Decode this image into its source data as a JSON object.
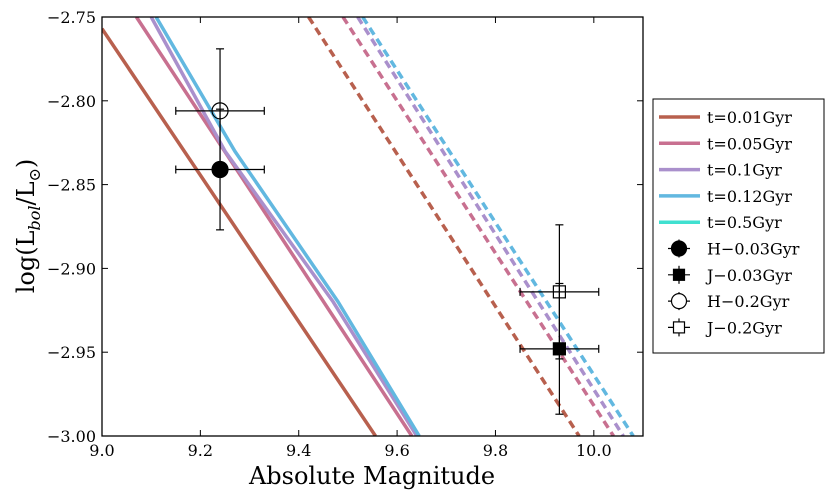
{
  "chart_data": {
    "type": "line",
    "xlabel": "Absolute Magnitude",
    "ylabel": "log(L_bol/L_⊙)",
    "ylabel_main": "log(L",
    "ylabel_sub1": "bol",
    "ylabel_mid": "/L",
    "ylabel_sub2": "⊙",
    "ylabel_end": ")",
    "xlim": [
      9.0,
      10.1
    ],
    "ylim": [
      -3.0,
      -2.75
    ],
    "xticks": [
      9.0,
      9.2,
      9.4,
      9.6,
      9.8,
      10.0
    ],
    "xtick_labels": [
      "9.0",
      "9.2",
      "9.4",
      "9.6",
      "9.8",
      "10.0"
    ],
    "yticks": [
      -3.0,
      -2.95,
      -2.9,
      -2.85,
      -2.8,
      -2.75
    ],
    "ytick_labels": [
      "−3.00",
      "−2.95",
      "−2.90",
      "−2.85",
      "−2.80",
      "−2.75"
    ],
    "grid": false,
    "legend_position": "right-outside",
    "series": [
      {
        "name": "t=0.01Gyr",
        "color": "#b8604e",
        "style": "solid",
        "points": [
          [
            9.0,
            -2.757
          ],
          [
            9.556,
            -3.0
          ]
        ]
      },
      {
        "name": "t=0.05Gyr",
        "color": "#c87090",
        "style": "solid",
        "points": [
          [
            9.07,
            -2.75
          ],
          [
            9.63,
            -3.0
          ]
        ]
      },
      {
        "name": "t=0.1Gyr",
        "color": "#aa90cc",
        "style": "solid",
        "points": [
          [
            9.1,
            -2.75
          ],
          [
            9.25,
            -2.83
          ],
          [
            9.47,
            -2.92
          ],
          [
            9.64,
            -3.0
          ]
        ]
      },
      {
        "name": "t=0.12Gyr",
        "color": "#62b8e0",
        "style": "solid",
        "points": [
          [
            9.11,
            -2.75
          ],
          [
            9.27,
            -2.83
          ],
          [
            9.48,
            -2.92
          ],
          [
            9.645,
            -3.0
          ]
        ]
      },
      {
        "name": "t=0.5Gyr",
        "color": "#40e0d0",
        "style": "none",
        "points": []
      },
      {
        "name": "t=0.01Gyr (dashed)",
        "color": "#b8604e",
        "style": "dashed",
        "points": [
          [
            9.42,
            -2.75
          ],
          [
            9.97,
            -3.0
          ]
        ]
      },
      {
        "name": "t=0.05Gyr (dashed)",
        "color": "#c87090",
        "style": "dashed",
        "points": [
          [
            9.49,
            -2.75
          ],
          [
            10.04,
            -3.0
          ]
        ]
      },
      {
        "name": "t=0.1Gyr (dashed)",
        "color": "#aa90cc",
        "style": "dashed",
        "points": [
          [
            9.52,
            -2.75
          ],
          [
            10.06,
            -3.0
          ]
        ]
      },
      {
        "name": "t=0.12Gyr (dashed)",
        "color": "#62b8e0",
        "style": "dashed",
        "points": [
          [
            9.53,
            -2.75
          ],
          [
            10.08,
            -3.0
          ]
        ]
      }
    ],
    "error_points": [
      {
        "name": "H−0.03Gyr",
        "marker": "circle",
        "filled": true,
        "x": 9.24,
        "y": -2.841,
        "xerr": 0.09,
        "yerr": 0.036
      },
      {
        "name": "J−0.03Gyr",
        "marker": "square",
        "filled": true,
        "x": 9.93,
        "y": -2.948,
        "xerr": 0.08,
        "yerr": 0.039
      },
      {
        "name": "H−0.2Gyr",
        "marker": "circle",
        "filled": false,
        "x": 9.24,
        "y": -2.806,
        "xerr": 0.09,
        "yerr": 0.037
      },
      {
        "name": "J−0.2Gyr",
        "marker": "square",
        "filled": false,
        "x": 9.93,
        "y": -2.914,
        "xerr": 0.08,
        "yerr": 0.04
      }
    ],
    "legend": [
      {
        "label": "t=0.01Gyr",
        "kind": "line",
        "color": "#b8604e"
      },
      {
        "label": "t=0.05Gyr",
        "kind": "line",
        "color": "#c87090"
      },
      {
        "label": "t=0.1Gyr",
        "kind": "line",
        "color": "#aa90cc"
      },
      {
        "label": "t=0.12Gyr",
        "kind": "line",
        "color": "#62b8e0"
      },
      {
        "label": "t=0.5Gyr",
        "kind": "line",
        "color": "#40e0d0"
      },
      {
        "label": "H−0.03Gyr",
        "kind": "marker",
        "marker": "circle",
        "filled": true
      },
      {
        "label": "J−0.03Gyr",
        "kind": "marker",
        "marker": "square",
        "filled": true
      },
      {
        "label": "H−0.2Gyr",
        "kind": "marker",
        "marker": "circle",
        "filled": false
      },
      {
        "label": "J−0.2Gyr",
        "kind": "marker",
        "marker": "square",
        "filled": false
      }
    ]
  }
}
